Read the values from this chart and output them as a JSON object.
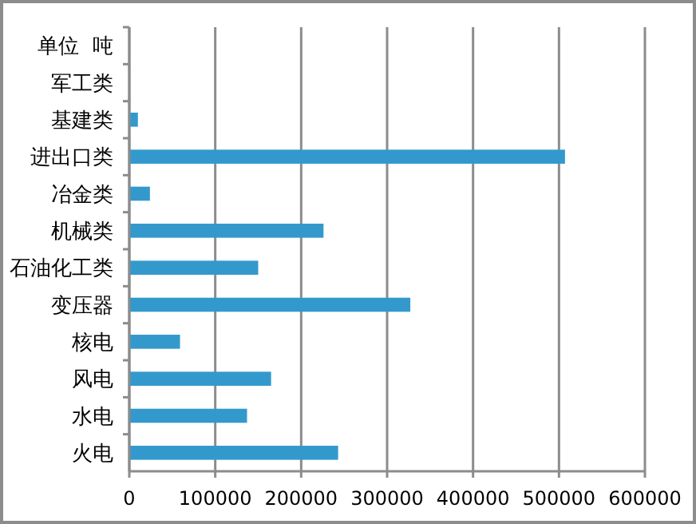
{
  "chart_data": {
    "type": "bar",
    "orientation": "horizontal",
    "categories": [
      "单位  吨",
      "军工类",
      "基建类",
      "进出口类",
      "冶金类",
      "机械类",
      "石油化工类",
      "变压器",
      "核电",
      "风电",
      "水电",
      "火电"
    ],
    "values": [
      null,
      null,
      10000,
      507000,
      24000,
      226000,
      150000,
      327000,
      59000,
      165000,
      137000,
      243000
    ],
    "color": "#3399cc",
    "xlim": [
      0,
      600000
    ],
    "xticks": [
      0,
      100000,
      200000,
      300000,
      400000,
      500000,
      600000
    ],
    "grid": "x"
  }
}
